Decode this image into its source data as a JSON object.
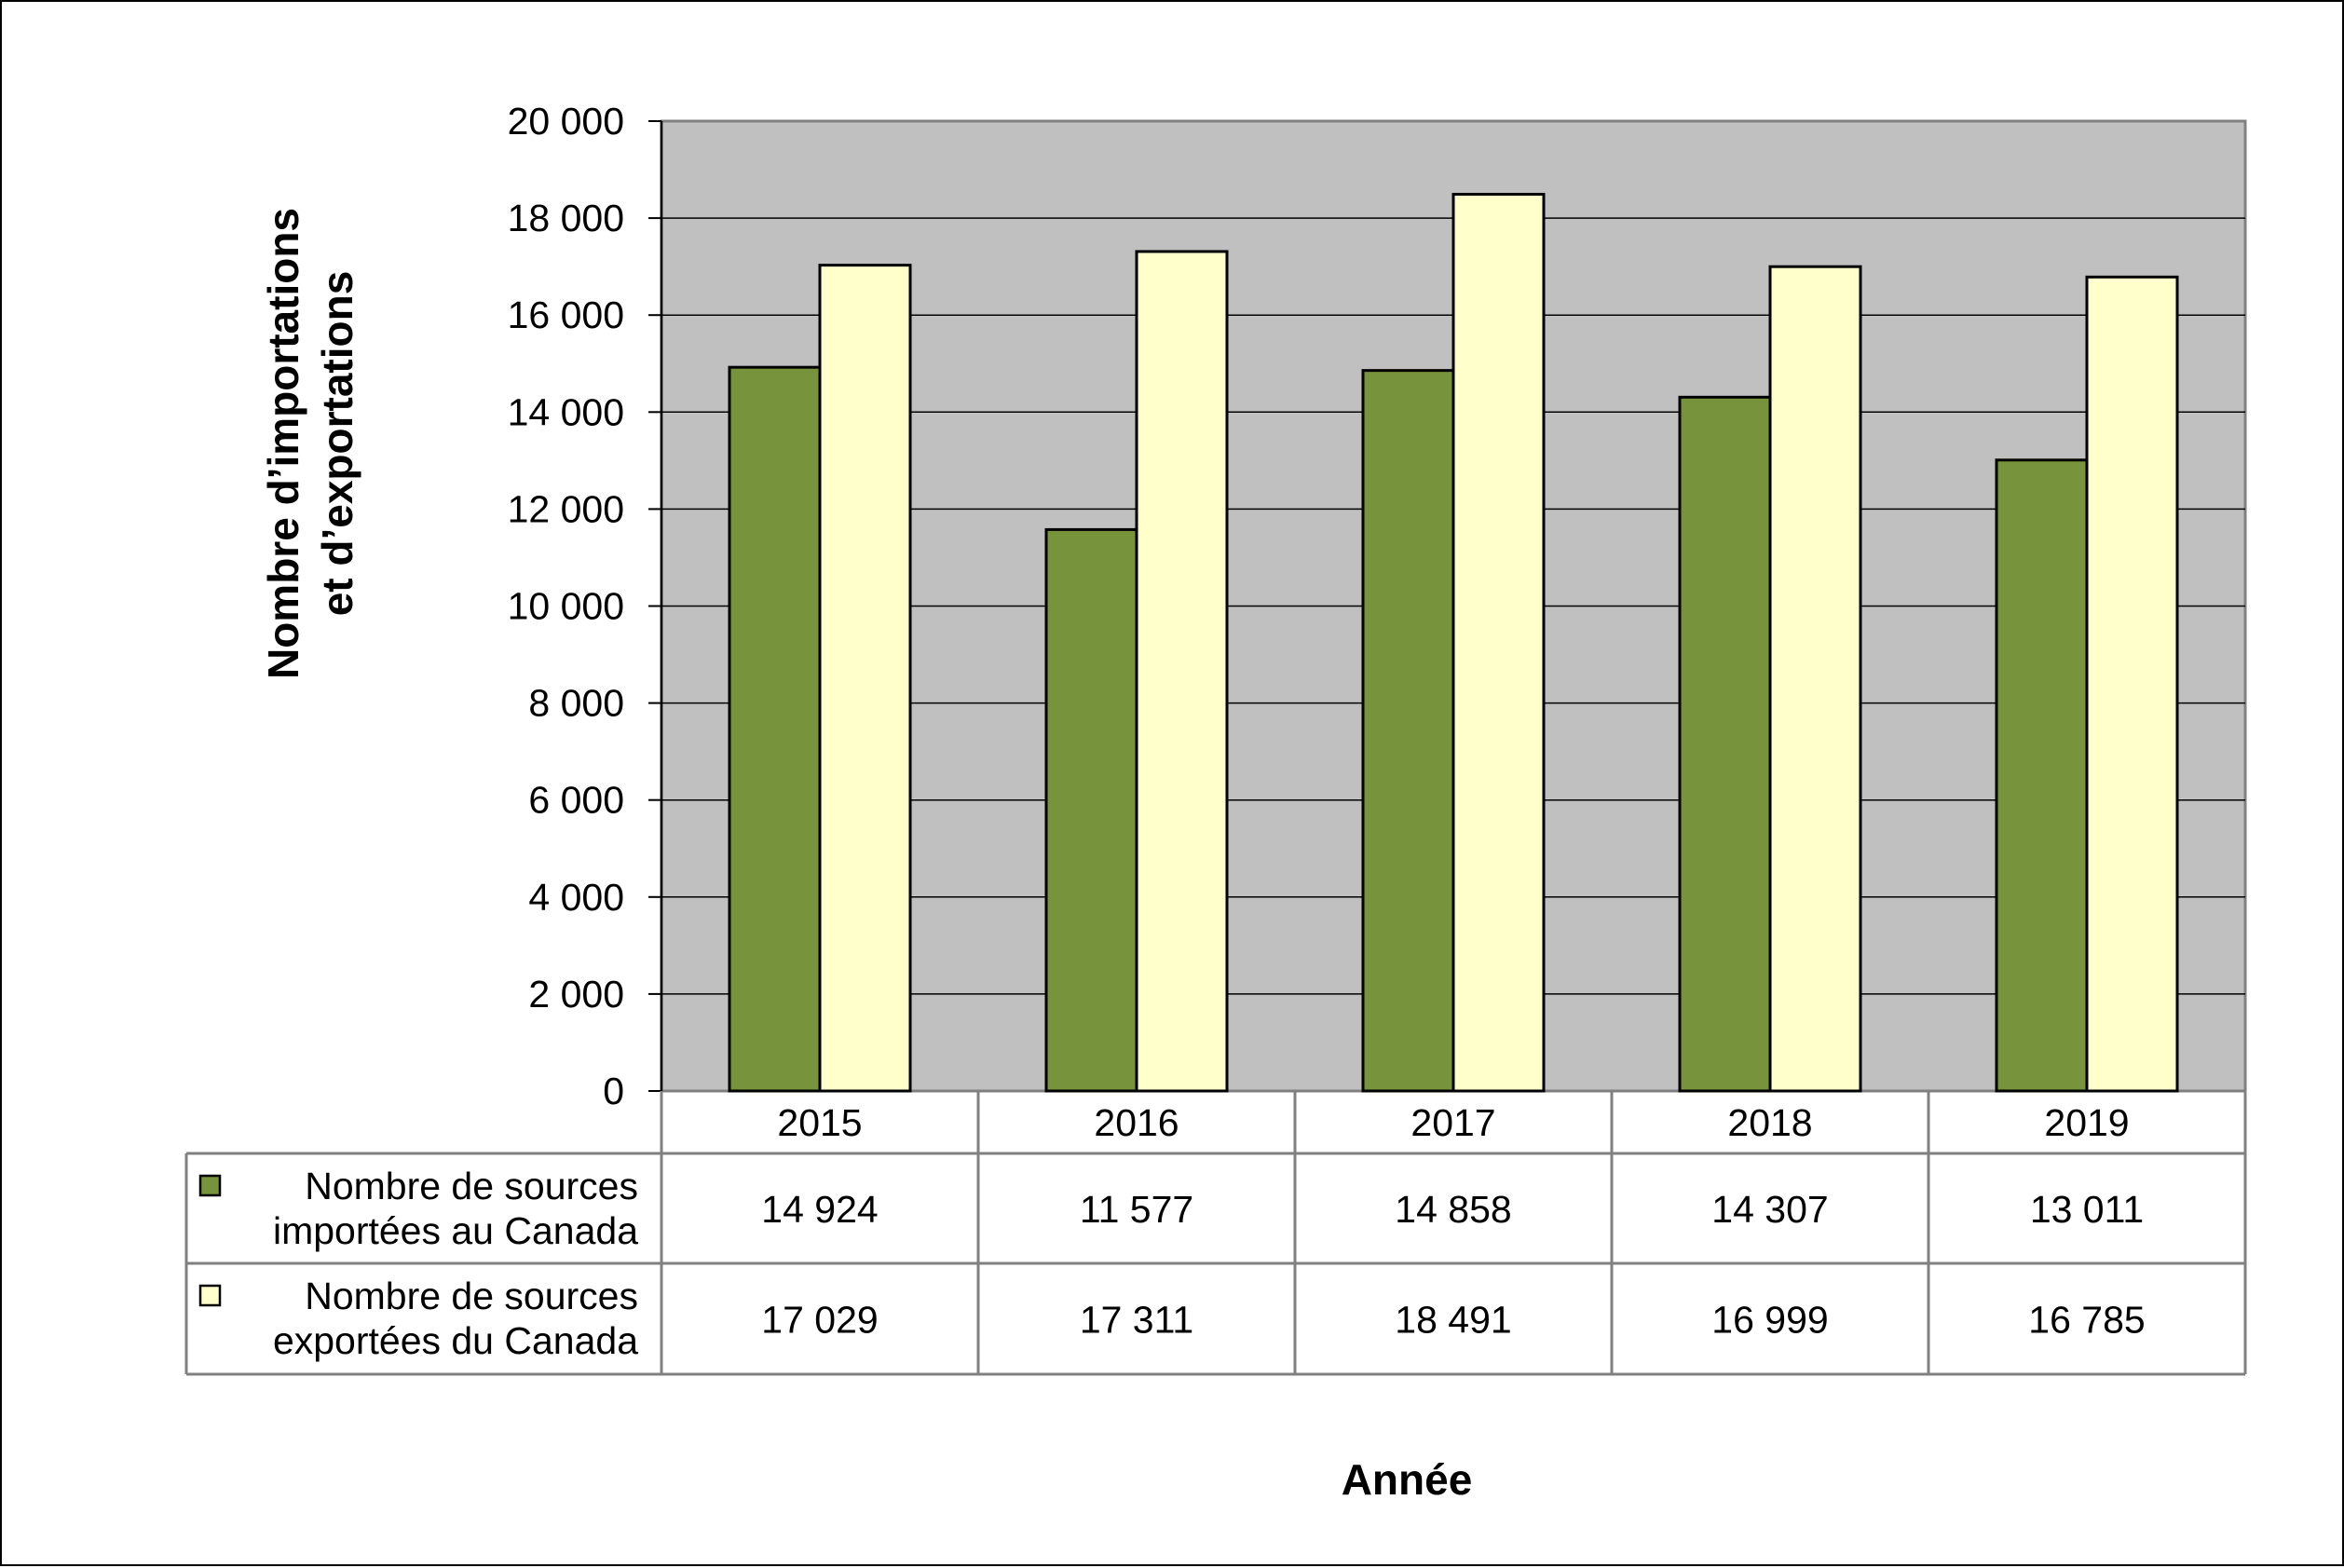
{
  "chart_data": {
    "type": "bar",
    "categories": [
      "2015",
      "2016",
      "2017",
      "2018",
      "2019"
    ],
    "series": [
      {
        "name": "Nombre de sources importées au Canada",
        "name_lines": [
          "Nombre de sources",
          "importées au Canada"
        ],
        "values": [
          14924,
          11577,
          14858,
          14307,
          13011
        ],
        "labels": [
          "14 924",
          "11 577",
          "14 858",
          "14 307",
          "13 011"
        ],
        "color": "#77933C"
      },
      {
        "name": "Nombre de sources exportées du Canada",
        "name_lines": [
          "Nombre de sources",
          "exportées du Canada"
        ],
        "values": [
          17029,
          17311,
          18491,
          16999,
          16785
        ],
        "labels": [
          "17 029",
          "17 311",
          "18 491",
          "16 999",
          "16 785"
        ],
        "color": "#FFFFCC"
      }
    ],
    "ylim": [
      0,
      20000
    ],
    "yticks": [
      0,
      2000,
      4000,
      6000,
      8000,
      10000,
      12000,
      14000,
      16000,
      18000,
      20000
    ],
    "ytick_labels": [
      "0",
      "2 000",
      "4 000",
      "6 000",
      "8 000",
      "10 000",
      "12 000",
      "14 000",
      "16 000",
      "18 000",
      "20 000"
    ],
    "ylabel_lines": [
      "Nombre d’importations",
      "et d’exportations"
    ],
    "xlabel": "Année",
    "plot_background": "#C0C0C0",
    "grid": true,
    "legend": "data-table"
  }
}
